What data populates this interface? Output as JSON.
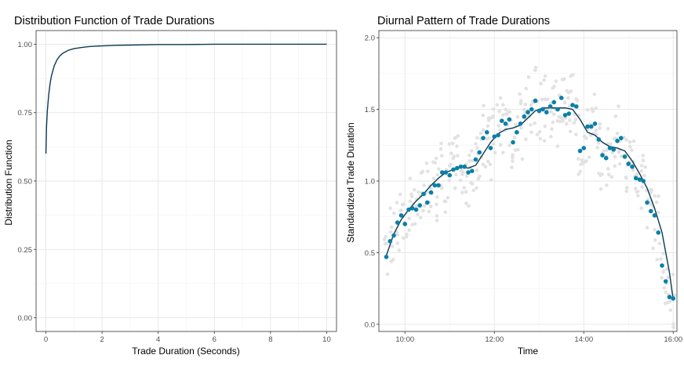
{
  "chart_data": [
    {
      "type": "line",
      "title": "Distribution Function of Trade Durations",
      "xlabel": "Trade Duration (Seconds)",
      "ylabel": "Distribution Function",
      "xlim": [
        -0.35,
        10.35
      ],
      "ylim": [
        -0.05,
        1.05
      ],
      "x_ticks": [
        0,
        2,
        4,
        6,
        8,
        10
      ],
      "x_tick_labels": [
        "0",
        "2",
        "4",
        "6",
        "8",
        "10"
      ],
      "y_ticks": [
        0,
        0.25,
        0.5,
        0.75,
        1.0
      ],
      "y_tick_labels": [
        "0.00",
        "0.25",
        "0.50",
        "0.75",
        "1.00"
      ],
      "grid": true,
      "color": "#0b3a52",
      "x": [
        0,
        0.02,
        0.05,
        0.1,
        0.15,
        0.2,
        0.3,
        0.4,
        0.5,
        0.6,
        0.8,
        1.0,
        1.25,
        1.5,
        1.75,
        2.0,
        2.5,
        3.0,
        3.5,
        4.0,
        5.0,
        6.0,
        7.0,
        8.0,
        9.0,
        10.0
      ],
      "y": [
        0.6,
        0.693,
        0.756,
        0.816,
        0.857,
        0.886,
        0.922,
        0.944,
        0.958,
        0.967,
        0.978,
        0.984,
        0.988,
        0.991,
        0.993,
        0.994,
        0.996,
        0.997,
        0.998,
        0.999,
        0.999,
        1.0,
        1.0,
        1.0,
        1.0,
        1.0
      ]
    },
    {
      "type": "scatter",
      "title": "Diurnal Pattern of Trade Durations",
      "xlabel": "Time",
      "ylabel": "Standardized Trade Duration",
      "xlim": [
        "09:25",
        "16:05"
      ],
      "ylim": [
        -0.05,
        2.05
      ],
      "x_ticks": [
        "10:00",
        "12:00",
        "14:00",
        "16:00"
      ],
      "x_tick_labels": [
        "10:00",
        "12:00",
        "14:00",
        "16:00"
      ],
      "y_ticks": [
        0,
        0.5,
        1.0,
        1.5,
        2.0
      ],
      "y_tick_labels": [
        "0.0",
        "0.5",
        "1.0",
        "1.5",
        "2.0"
      ],
      "grid": true,
      "background_points_color": "#e2e2e2",
      "mean_points_color": "#0a7fa8",
      "smooth_color": "#0b3a52",
      "mean_points": {
        "x": [
          "09:35",
          "09:40",
          "09:45",
          "09:50",
          "09:55",
          "10:00",
          "10:05",
          "10:10",
          "10:15",
          "10:20",
          "10:25",
          "10:30",
          "10:35",
          "10:40",
          "10:45",
          "10:50",
          "10:55",
          "11:00",
          "11:05",
          "11:10",
          "11:15",
          "11:20",
          "11:25",
          "11:30",
          "11:35",
          "11:40",
          "11:45",
          "11:50",
          "11:55",
          "12:00",
          "12:05",
          "12:10",
          "12:15",
          "12:20",
          "12:25",
          "12:30",
          "12:35",
          "12:40",
          "12:45",
          "12:50",
          "12:55",
          "13:00",
          "13:05",
          "13:10",
          "13:15",
          "13:20",
          "13:25",
          "13:30",
          "13:35",
          "13:40",
          "13:45",
          "13:50",
          "13:55",
          "14:00",
          "14:05",
          "14:10",
          "14:15",
          "14:20",
          "14:25",
          "14:30",
          "14:35",
          "14:40",
          "14:45",
          "14:50",
          "14:55",
          "15:00",
          "15:05",
          "15:10",
          "15:15",
          "15:20",
          "15:25",
          "15:30",
          "15:35",
          "15:40",
          "15:45",
          "15:50",
          "15:55",
          "16:00"
        ],
        "y": [
          0.47,
          0.58,
          0.62,
          0.71,
          0.76,
          0.7,
          0.8,
          0.81,
          0.8,
          0.83,
          0.91,
          0.85,
          0.92,
          0.97,
          0.97,
          1.06,
          1.06,
          1.04,
          1.08,
          1.09,
          1.1,
          1.1,
          1.06,
          1.07,
          1.15,
          1.2,
          1.3,
          1.34,
          1.23,
          1.31,
          1.32,
          1.42,
          1.4,
          1.43,
          1.27,
          1.34,
          1.4,
          1.45,
          1.48,
          1.5,
          1.56,
          1.49,
          1.5,
          1.48,
          1.52,
          1.55,
          1.5,
          1.58,
          1.46,
          1.47,
          1.53,
          1.52,
          1.21,
          1.23,
          1.38,
          1.38,
          1.4,
          1.29,
          1.18,
          1.16,
          1.23,
          1.22,
          1.28,
          1.3,
          1.17,
          1.12,
          1.1,
          1.02,
          1.01,
          1.0,
          0.85,
          0.79,
          0.76,
          0.64,
          0.41,
          0.3,
          0.19,
          0.18
        ]
      },
      "smooth_curve": {
        "x": [
          "09:35",
          "09:45",
          "09:55",
          "10:05",
          "10:15",
          "10:25",
          "10:35",
          "10:45",
          "10:55",
          "11:05",
          "11:15",
          "11:25",
          "11:35",
          "11:45",
          "11:55",
          "12:05",
          "12:15",
          "12:25",
          "12:35",
          "12:45",
          "12:55",
          "13:05",
          "13:15",
          "13:25",
          "13:35",
          "13:45",
          "13:55",
          "14:05",
          "14:15",
          "14:25",
          "14:35",
          "14:45",
          "14:55",
          "15:05",
          "15:15",
          "15:25",
          "15:35",
          "15:45",
          "15:55",
          "16:00"
        ],
        "y": [
          0.48,
          0.63,
          0.73,
          0.8,
          0.86,
          0.91,
          0.97,
          1.02,
          1.06,
          1.08,
          1.1,
          1.09,
          1.11,
          1.19,
          1.27,
          1.33,
          1.36,
          1.37,
          1.39,
          1.44,
          1.49,
          1.51,
          1.51,
          1.51,
          1.51,
          1.5,
          1.43,
          1.34,
          1.32,
          1.27,
          1.24,
          1.23,
          1.21,
          1.14,
          1.05,
          0.95,
          0.81,
          0.64,
          0.36,
          0.17
        ]
      }
    }
  ]
}
